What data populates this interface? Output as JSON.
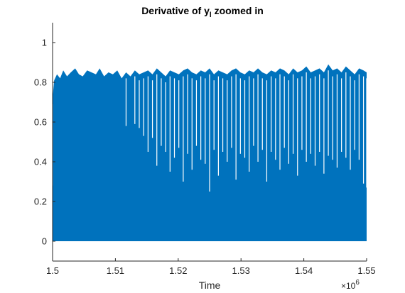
{
  "chart_data": {
    "type": "area",
    "title": "Derivative of y",
    "title_subscript": "l",
    "title_suffix": " zoomed in",
    "xlabel": "Time",
    "ylabel": "",
    "xlim": [
      1500000,
      1550000
    ],
    "ylim": [
      -0.1,
      1.1
    ],
    "x_exponent_label": "×10",
    "x_exponent_value": "6",
    "xticks": [
      1500000,
      1510000,
      1520000,
      1530000,
      1540000,
      1550000
    ],
    "xtick_labels": [
      "1.5",
      "1.51",
      "1.52",
      "1.53",
      "1.54",
      "1.55"
    ],
    "yticks": [
      0,
      0.2,
      0.4,
      0.6,
      0.8,
      1
    ],
    "ytick_labels": [
      "0",
      "0.2",
      "0.4",
      "0.6",
      "0.8",
      "1"
    ],
    "grid": false,
    "series": [
      {
        "color": "#0072BD",
        "baseline": 0,
        "envelope_x": [
          1500000,
          1500250,
          1500700,
          1501200,
          1501700,
          1502300,
          1502900,
          1503600,
          1504200,
          1504800,
          1505500,
          1506200,
          1506900,
          1507500,
          1508200,
          1508900,
          1509600,
          1510300,
          1511000,
          1511700,
          1512400,
          1513100,
          1513800,
          1514500,
          1515200,
          1515900,
          1516600,
          1517300,
          1518000,
          1518700,
          1519400,
          1520100,
          1520800,
          1521500,
          1522200,
          1522900,
          1523600,
          1524300,
          1525000,
          1525700,
          1526400,
          1527100,
          1527800,
          1528500,
          1529200,
          1529900,
          1530600,
          1531300,
          1532000,
          1532700,
          1533400,
          1534100,
          1534800,
          1535500,
          1536200,
          1536900,
          1537600,
          1538300,
          1539000,
          1539700,
          1540400,
          1541100,
          1541800,
          1542500,
          1543200,
          1543900,
          1544600,
          1545300,
          1546000,
          1546700,
          1547400,
          1548100,
          1548800,
          1549500,
          1550000
        ],
        "envelope_upper": [
          0.72,
          0.81,
          0.84,
          0.82,
          0.86,
          0.83,
          0.85,
          0.87,
          0.84,
          0.83,
          0.86,
          0.85,
          0.84,
          0.87,
          0.83,
          0.85,
          0.84,
          0.86,
          0.82,
          0.85,
          0.83,
          0.86,
          0.84,
          0.85,
          0.86,
          0.84,
          0.87,
          0.85,
          0.83,
          0.86,
          0.85,
          0.84,
          0.86,
          0.87,
          0.85,
          0.84,
          0.86,
          0.85,
          0.87,
          0.84,
          0.86,
          0.85,
          0.84,
          0.86,
          0.87,
          0.85,
          0.84,
          0.86,
          0.85,
          0.87,
          0.85,
          0.84,
          0.86,
          0.85,
          0.87,
          0.86,
          0.84,
          0.87,
          0.85,
          0.86,
          0.88,
          0.85,
          0.86,
          0.87,
          0.85,
          0.89,
          0.86,
          0.87,
          0.85,
          0.88,
          0.86,
          0.84,
          0.87,
          0.86,
          0.85
        ],
        "envelope_lower": [
          0.28,
          0.68,
          0.66,
          0.7,
          0.67,
          0.69,
          0.66,
          0.7,
          0.67,
          0.68,
          0.66,
          0.69,
          0.67,
          0.65,
          0.68,
          0.66,
          0.67,
          0.62,
          0.6,
          0.58,
          0.61,
          0.59,
          0.57,
          0.53,
          0.45,
          0.52,
          0.38,
          0.48,
          0.45,
          0.35,
          0.42,
          0.47,
          0.3,
          0.44,
          0.36,
          0.48,
          0.41,
          0.39,
          0.25,
          0.46,
          0.33,
          0.45,
          0.4,
          0.47,
          0.31,
          0.44,
          0.42,
          0.35,
          0.48,
          0.4,
          0.46,
          0.3,
          0.45,
          0.41,
          0.36,
          0.47,
          0.39,
          0.44,
          0.33,
          0.46,
          0.4,
          0.44,
          0.38,
          0.45,
          0.34,
          0.43,
          0.41,
          0.37,
          0.45,
          0.42,
          0.36,
          0.46,
          0.41,
          0.29,
          0.27
        ]
      }
    ]
  }
}
